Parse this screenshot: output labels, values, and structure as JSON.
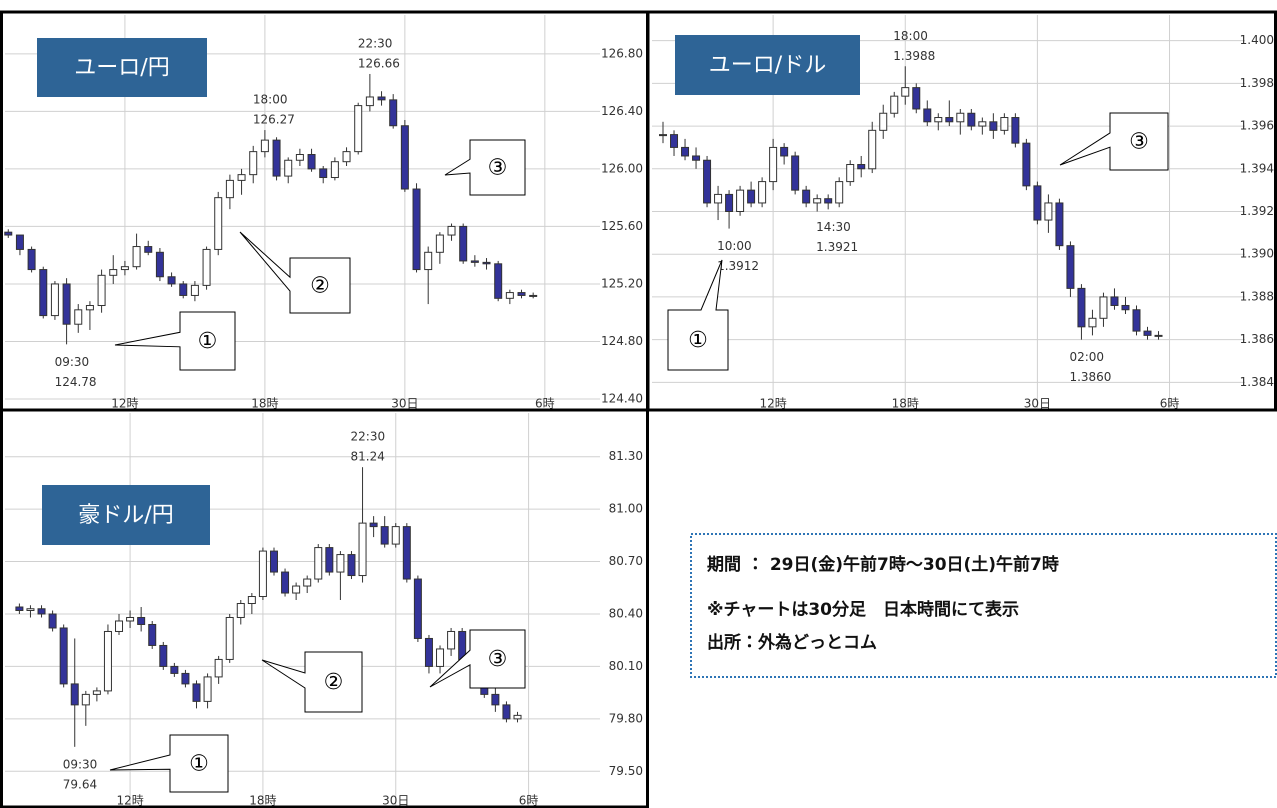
{
  "chart_data": [
    {
      "type": "candlestick",
      "title": "ユーロ/円",
      "x": [
        7,
        7.5,
        8,
        8.5,
        9,
        9.5,
        10,
        10.5,
        11,
        11.5,
        12,
        12.5,
        13,
        13.5,
        14,
        14.5,
        15,
        15.5,
        16,
        16.5,
        17,
        17.5,
        18,
        18.5,
        19,
        19.5,
        20,
        20.5,
        21,
        21.5,
        22,
        22.5,
        23,
        23.5,
        24,
        24.5,
        25,
        25.5,
        26,
        26.5,
        27,
        27.5,
        28,
        28.5,
        29,
        29.5
      ],
      "open": [
        125.56,
        125.54,
        125.44,
        125.3,
        124.98,
        125.2,
        124.92,
        125.02,
        125.05,
        125.26,
        125.3,
        125.32,
        125.46,
        125.42,
        125.25,
        125.2,
        125.12,
        125.19,
        125.44,
        125.8,
        125.92,
        125.96,
        126.12,
        126.2,
        125.95,
        126.06,
        126.1,
        126.0,
        125.94,
        126.05,
        126.12,
        126.44,
        126.5,
        126.48,
        126.3,
        125.86,
        125.3,
        125.42,
        125.54,
        125.6,
        125.36,
        125.35,
        125.34,
        125.1,
        125.14,
        125.12
      ],
      "high": [
        125.58,
        125.54,
        125.46,
        125.32,
        125.22,
        125.24,
        125.06,
        125.08,
        125.3,
        125.4,
        125.36,
        125.55,
        125.5,
        125.45,
        125.28,
        125.22,
        125.22,
        125.46,
        125.84,
        125.96,
        126.0,
        126.16,
        126.27,
        126.22,
        126.08,
        126.14,
        126.14,
        126.02,
        126.08,
        126.15,
        126.46,
        126.66,
        126.54,
        126.52,
        126.34,
        125.9,
        125.46,
        125.56,
        125.62,
        125.62,
        125.4,
        125.38,
        125.36,
        125.16,
        125.16,
        125.14
      ],
      "low": [
        125.52,
        125.4,
        125.28,
        124.96,
        124.95,
        124.78,
        124.86,
        124.88,
        125.0,
        125.2,
        125.26,
        125.3,
        125.4,
        125.22,
        125.18,
        125.1,
        125.08,
        125.16,
        125.4,
        125.72,
        125.82,
        125.9,
        126.08,
        125.92,
        125.9,
        126.02,
        125.98,
        125.9,
        125.92,
        126.02,
        126.1,
        126.4,
        126.44,
        126.28,
        125.84,
        125.28,
        125.06,
        125.34,
        125.5,
        125.34,
        125.32,
        125.3,
        125.08,
        125.06,
        125.1,
        125.1
      ],
      "close": [
        125.54,
        125.44,
        125.3,
        124.98,
        125.2,
        124.92,
        125.02,
        125.05,
        125.26,
        125.3,
        125.32,
        125.46,
        125.42,
        125.25,
        125.2,
        125.12,
        125.19,
        125.44,
        125.8,
        125.92,
        125.96,
        126.12,
        126.2,
        125.95,
        126.06,
        126.1,
        126.0,
        125.94,
        126.05,
        126.12,
        126.44,
        126.5,
        126.48,
        126.3,
        125.86,
        125.3,
        125.42,
        125.54,
        125.6,
        125.36,
        125.35,
        125.34,
        125.1,
        125.14,
        125.12,
        125.12
      ],
      "xlim": [
        6.86,
        32.15
      ],
      "xticks": [
        {
          "value": 12,
          "label": "12時"
        },
        {
          "value": 18,
          "label": "18時"
        },
        {
          "value": 24,
          "label": "30日"
        },
        {
          "value": 30,
          "label": "6時"
        }
      ],
      "ylim": [
        124.4,
        127.07
      ],
      "yticks": [
        {
          "value": 124.4,
          "label": "124.40"
        },
        {
          "value": 124.8,
          "label": "124.80"
        },
        {
          "value": 125.2,
          "label": "125.20"
        },
        {
          "value": 125.6,
          "label": "125.60"
        },
        {
          "value": 126,
          "label": "126.00"
        },
        {
          "value": 126.4,
          "label": "126.40"
        },
        {
          "value": 126.8,
          "label": "126.80"
        }
      ],
      "grid": true,
      "up_color": "#ffffff",
      "down_color": "#333399",
      "line_color": "#333333",
      "annotations": [
        {
          "time": "09:30",
          "value": "124.78"
        },
        {
          "time": "18:00",
          "value": "126.27"
        },
        {
          "time": "22:30",
          "value": "126.66"
        }
      ],
      "callouts": [
        "①",
        "②",
        "③"
      ]
    },
    {
      "type": "candlestick",
      "title": "ユーロ/ドル",
      "x": [
        7,
        7.5,
        8,
        8.5,
        9,
        9.5,
        10,
        10.5,
        11,
        11.5,
        12,
        12.5,
        13,
        13.5,
        14,
        14.5,
        15,
        15.5,
        16,
        16.5,
        17,
        17.5,
        18,
        18.5,
        19,
        19.5,
        20,
        20.5,
        21,
        21.5,
        22,
        22.5,
        23,
        23.5,
        24,
        24.5,
        25,
        25.5,
        26,
        26.5,
        27,
        27.5,
        28,
        28.5,
        29,
        29.5
      ],
      "open": [
        1.3956,
        1.3956,
        1.395,
        1.3946,
        1.3944,
        1.3924,
        1.3928,
        1.392,
        1.393,
        1.3924,
        1.3934,
        1.395,
        1.3946,
        1.393,
        1.3924,
        1.3926,
        1.3924,
        1.3934,
        1.3942,
        1.394,
        1.3958,
        1.3966,
        1.3974,
        1.3978,
        1.3968,
        1.3962,
        1.3964,
        1.3962,
        1.3966,
        1.396,
        1.3962,
        1.3958,
        1.3964,
        1.3952,
        1.3932,
        1.3916,
        1.3924,
        1.3904,
        1.3884,
        1.3866,
        1.387,
        1.388,
        1.3876,
        1.3874,
        1.3864,
        1.3862
      ],
      "high": [
        1.3962,
        1.3958,
        1.3954,
        1.395,
        1.3946,
        1.3932,
        1.393,
        1.3932,
        1.3934,
        1.3936,
        1.3954,
        1.3952,
        1.3948,
        1.3932,
        1.3928,
        1.3928,
        1.3936,
        1.3944,
        1.3946,
        1.3962,
        1.397,
        1.3976,
        1.3988,
        1.398,
        1.3972,
        1.3966,
        1.3972,
        1.3968,
        1.3968,
        1.3964,
        1.3966,
        1.3966,
        1.3966,
        1.3954,
        1.3934,
        1.3928,
        1.3926,
        1.3906,
        1.3886,
        1.3874,
        1.3882,
        1.3884,
        1.388,
        1.3876,
        1.3866,
        1.3864
      ],
      "low": [
        1.3952,
        1.3946,
        1.3944,
        1.394,
        1.3922,
        1.3916,
        1.3912,
        1.3918,
        1.3922,
        1.3922,
        1.393,
        1.3942,
        1.3928,
        1.3922,
        1.392,
        1.3921,
        1.3922,
        1.3932,
        1.3936,
        1.3938,
        1.3954,
        1.3964,
        1.397,
        1.3966,
        1.396,
        1.3958,
        1.396,
        1.3956,
        1.3958,
        1.3956,
        1.3954,
        1.3956,
        1.395,
        1.393,
        1.3914,
        1.391,
        1.3902,
        1.388,
        1.386,
        1.3862,
        1.3866,
        1.3874,
        1.3872,
        1.3862,
        1.386,
        1.386
      ],
      "close": [
        1.3956,
        1.395,
        1.3946,
        1.3944,
        1.3924,
        1.3928,
        1.392,
        1.393,
        1.3924,
        1.3934,
        1.395,
        1.3946,
        1.393,
        1.3924,
        1.3926,
        1.3924,
        1.3934,
        1.3942,
        1.394,
        1.3958,
        1.3966,
        1.3974,
        1.3978,
        1.3968,
        1.3962,
        1.3964,
        1.3962,
        1.3966,
        1.396,
        1.3962,
        1.3958,
        1.3964,
        1.3952,
        1.3932,
        1.3916,
        1.3924,
        1.3904,
        1.3884,
        1.3866,
        1.387,
        1.388,
        1.3876,
        1.3874,
        1.3864,
        1.3862,
        1.3862
      ],
      "xlim": [
        6.5,
        33.2
      ],
      "xticks": [
        {
          "value": 12,
          "label": "12時"
        },
        {
          "value": 18,
          "label": "18時"
        },
        {
          "value": 24,
          "label": "30日"
        },
        {
          "value": 30,
          "label": "6時"
        }
      ],
      "ylim": [
        1.3828,
        1.4012
      ],
      "yticks": [
        1.384,
        1.386,
        1.388,
        {
          "value": 1.39,
          "label": "1.390"
        },
        1.392,
        1.394,
        1.396,
        1.398,
        {
          "value": 1.4,
          "label": "1.400"
        }
      ],
      "grid": true,
      "up_color": "#ffffff",
      "down_color": "#333399",
      "line_color": "#333333",
      "annotations": [
        {
          "time": "10:00",
          "value": "1.3912"
        },
        {
          "time": "14:30",
          "value": "1.3921"
        },
        {
          "time": "18:00",
          "value": "1.3988"
        },
        {
          "time": "02:00",
          "value": "1.3860"
        }
      ],
      "callouts": [
        "①",
        "③"
      ]
    },
    {
      "type": "candlestick",
      "title": "豪ドル/円",
      "x": [
        7,
        7.5,
        8,
        8.5,
        9,
        9.5,
        10,
        10.5,
        11,
        11.5,
        12,
        12.5,
        13,
        13.5,
        14,
        14.5,
        15,
        15.5,
        16,
        16.5,
        17,
        17.5,
        18,
        18.5,
        19,
        19.5,
        20,
        20.5,
        21,
        21.5,
        22,
        22.5,
        23,
        23.5,
        24,
        24.5,
        25,
        25.5,
        26,
        26.5,
        27,
        27.5,
        28,
        28.5,
        29,
        29.5
      ],
      "open": [
        80.44,
        80.42,
        80.43,
        80.4,
        80.32,
        80.0,
        79.88,
        79.94,
        79.96,
        80.3,
        80.36,
        80.38,
        80.34,
        80.22,
        80.1,
        80.06,
        80.0,
        79.9,
        80.04,
        80.14,
        80.38,
        80.46,
        80.5,
        80.76,
        80.64,
        80.52,
        80.56,
        80.6,
        80.78,
        80.64,
        80.74,
        80.62,
        80.92,
        80.9,
        80.8,
        80.9,
        80.6,
        80.26,
        80.1,
        80.2,
        80.3,
        80.14,
        80.16,
        79.94,
        79.88,
        79.8
      ],
      "high": [
        80.46,
        80.45,
        80.45,
        80.42,
        80.34,
        80.26,
        79.96,
        79.98,
        80.34,
        80.4,
        80.42,
        80.44,
        80.36,
        80.24,
        80.12,
        80.08,
        80.02,
        80.06,
        80.16,
        80.4,
        80.48,
        80.52,
        80.78,
        80.78,
        80.66,
        80.58,
        80.62,
        80.8,
        80.8,
        80.76,
        80.76,
        81.24,
        80.96,
        80.96,
        80.92,
        80.92,
        80.62,
        80.28,
        80.22,
        80.32,
        80.32,
        80.2,
        80.18,
        79.98,
        79.9,
        79.84
      ],
      "low": [
        80.4,
        80.38,
        80.38,
        80.3,
        79.98,
        79.64,
        79.76,
        79.9,
        79.94,
        80.28,
        80.32,
        80.3,
        80.2,
        80.08,
        80.04,
        79.98,
        79.86,
        79.86,
        80.0,
        80.12,
        80.34,
        80.4,
        80.48,
        80.62,
        80.5,
        80.48,
        80.52,
        80.58,
        80.62,
        80.48,
        80.6,
        80.58,
        80.84,
        80.78,
        80.78,
        80.58,
        80.24,
        80.06,
        80.06,
        80.16,
        80.12,
        80.1,
        79.92,
        79.84,
        79.78,
        79.78
      ],
      "close": [
        80.42,
        80.43,
        80.4,
        80.32,
        80.0,
        79.88,
        79.94,
        79.96,
        80.3,
        80.36,
        80.38,
        80.34,
        80.22,
        80.1,
        80.06,
        80.0,
        79.9,
        80.04,
        80.14,
        80.38,
        80.46,
        80.5,
        80.76,
        80.64,
        80.52,
        80.56,
        80.6,
        80.78,
        80.64,
        80.74,
        80.62,
        80.92,
        80.9,
        80.8,
        80.9,
        80.6,
        80.26,
        80.1,
        80.2,
        80.3,
        80.14,
        80.16,
        79.94,
        79.88,
        79.8,
        79.82
      ],
      "xlim": [
        6.35,
        33.0
      ],
      "xticks": [
        {
          "value": 12,
          "label": "12時"
        },
        {
          "value": 18,
          "label": "18時"
        },
        {
          "value": 24,
          "label": "30日"
        },
        {
          "value": 30,
          "label": "6時"
        }
      ],
      "ylim": [
        79.29,
        81.55
      ],
      "yticks": [
        {
          "value": 79.5,
          "label": "79.50"
        },
        {
          "value": 79.8,
          "label": "79.80"
        },
        {
          "value": 80.1,
          "label": "80.10"
        },
        {
          "value": 80.4,
          "label": "80.40"
        },
        {
          "value": 80.7,
          "label": "80.70"
        },
        {
          "value": 81,
          "label": "81.00"
        },
        {
          "value": 81.3,
          "label": "81.30"
        }
      ],
      "grid": true,
      "up_color": "#ffffff",
      "down_color": "#333399",
      "line_color": "#333333",
      "annotations": [
        {
          "time": "09:30",
          "value": "79.64"
        },
        {
          "time": "22:30",
          "value": "81.24"
        }
      ],
      "callouts": [
        "①",
        "②",
        "③"
      ]
    }
  ],
  "info_box": {
    "lines": [
      "期間 ： 29日(金)午前7時～30日(土)午前7時",
      "※チャートは30分足　日本時間にて表示",
      "出所：外為どっとコム"
    ]
  }
}
